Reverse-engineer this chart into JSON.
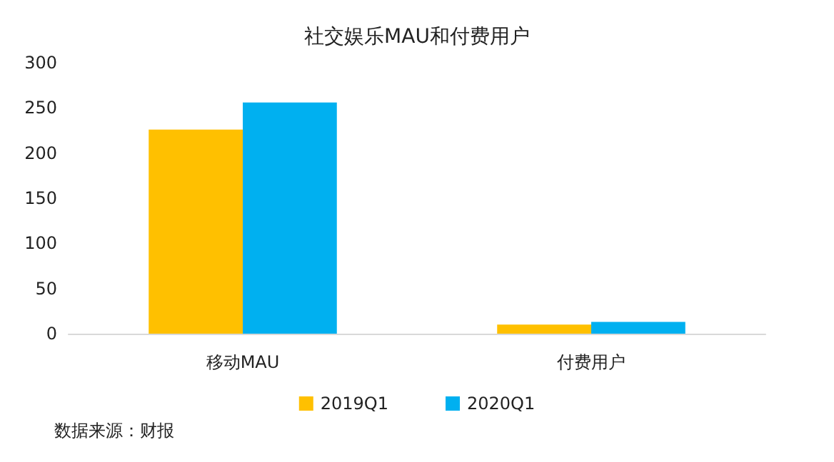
{
  "chart_data": {
    "type": "bar",
    "title": "社交娱乐MAU和付费用户",
    "categories": [
      "移动MAU",
      "付费用户"
    ],
    "series": [
      {
        "name": "2019Q1",
        "color": "#ffc000",
        "values": [
          226,
          10
        ]
      },
      {
        "name": "2020Q1",
        "color": "#00b0f0",
        "values": [
          256,
          13
        ]
      }
    ],
    "ylim": [
      0,
      300
    ],
    "yticks": [
      0,
      50,
      100,
      150,
      200,
      250,
      300
    ],
    "grid": false,
    "legend": "bottom",
    "annotations": [
      "数据来源：财报"
    ]
  }
}
